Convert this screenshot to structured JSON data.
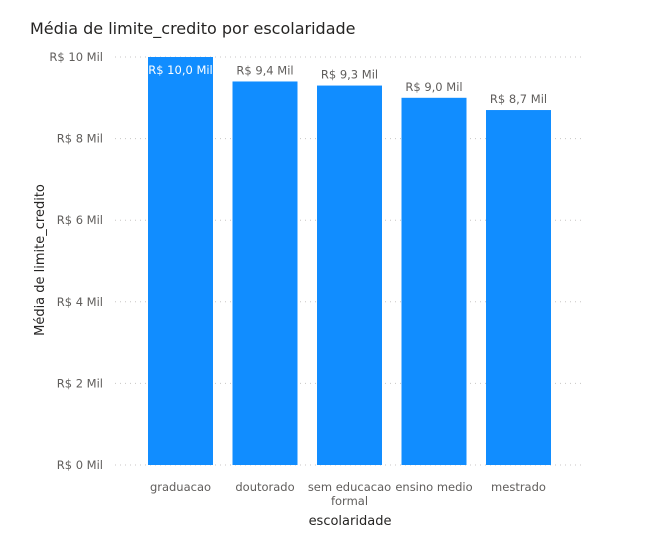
{
  "chart_data": {
    "type": "bar",
    "title": "Média de limite_credito por escolaridade",
    "xlabel": "escolaridade",
    "ylabel": "Média de limite_credito",
    "categories": [
      "graduacao",
      "doutorado",
      "sem educacao formal",
      "ensino medio",
      "mestrado"
    ],
    "category_lines": [
      [
        "graduacao"
      ],
      [
        "doutorado"
      ],
      [
        "sem educacao",
        "formal"
      ],
      [
        "ensino medio"
      ],
      [
        "mestrado"
      ]
    ],
    "values": [
      10000,
      9400,
      9300,
      9000,
      8700
    ],
    "data_labels": [
      "R$ 10,0 Mil",
      "R$ 9,4 Mil",
      "R$ 9,3 Mil",
      "R$ 9,0 Mil",
      "R$ 8,7 Mil"
    ],
    "y_ticks": [
      0,
      2000,
      4000,
      6000,
      8000,
      10000
    ],
    "y_tick_labels": [
      "R$ 0 Mil",
      "R$ 2 Mil",
      "R$ 4 Mil",
      "R$ 6 Mil",
      "R$ 8 Mil",
      "R$ 10 Mil"
    ],
    "ylim": [
      0,
      10000
    ],
    "grid": true,
    "legend": "none",
    "bar_color": "#118DFF"
  }
}
